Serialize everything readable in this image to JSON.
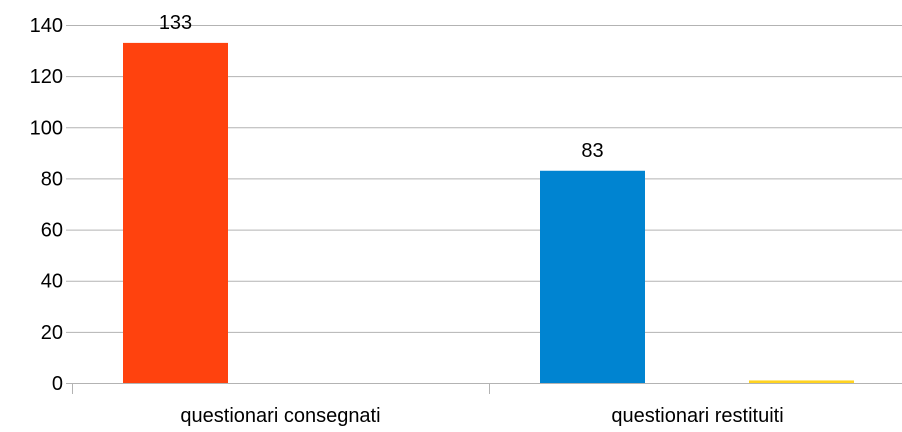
{
  "chart_data": {
    "type": "bar",
    "categories": [
      "questionari consegnati",
      "questionari restituiti"
    ],
    "series": [
      {
        "values": [
          133,
          83
        ],
        "color": "#ff420e"
      },
      {
        "values": [
          0,
          1
        ],
        "color": "#ffd320"
      }
    ],
    "category_colors": [
      "#ff420e",
      "#0084d1"
    ],
    "data_labels": [
      "133",
      "83"
    ],
    "ylim": [
      0,
      140
    ],
    "yticks": [
      0,
      20,
      40,
      60,
      80,
      100,
      120,
      140
    ],
    "grid": true,
    "legend": "none",
    "title": "",
    "xlabel": "",
    "ylabel": ""
  }
}
